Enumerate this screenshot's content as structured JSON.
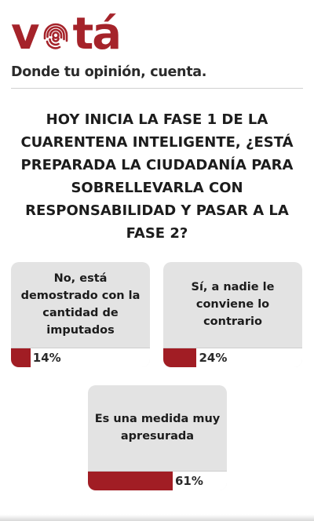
{
  "brand": {
    "logo_prefix": "v",
    "logo_suffix": "tá",
    "tagline": "Donde tu opinión, cuenta.",
    "accent_color": "#a5232a",
    "logo_icon": "fingerprint-icon"
  },
  "poll": {
    "question": "HOY INICIA LA FASE 1 DE LA CUARENTENA INTELIGENTE, ¿ESTÁ PREPARADA LA CIUDADANÍA PARA SOBRELLEVARLA CON RESPONSABILIDAD Y PASAR A LA FASE 2?",
    "options": [
      {
        "label": "No, está demostrado con la cantidad de imputados",
        "percent_label": "14%",
        "percent": 14
      },
      {
        "label": "Sí, a nadie le conviene lo contrario",
        "percent_label": "24%",
        "percent": 24
      },
      {
        "label": "Es una medida muy apresurada",
        "percent_label": "61%",
        "percent": 61
      }
    ],
    "bar_color": "#a11d24"
  }
}
